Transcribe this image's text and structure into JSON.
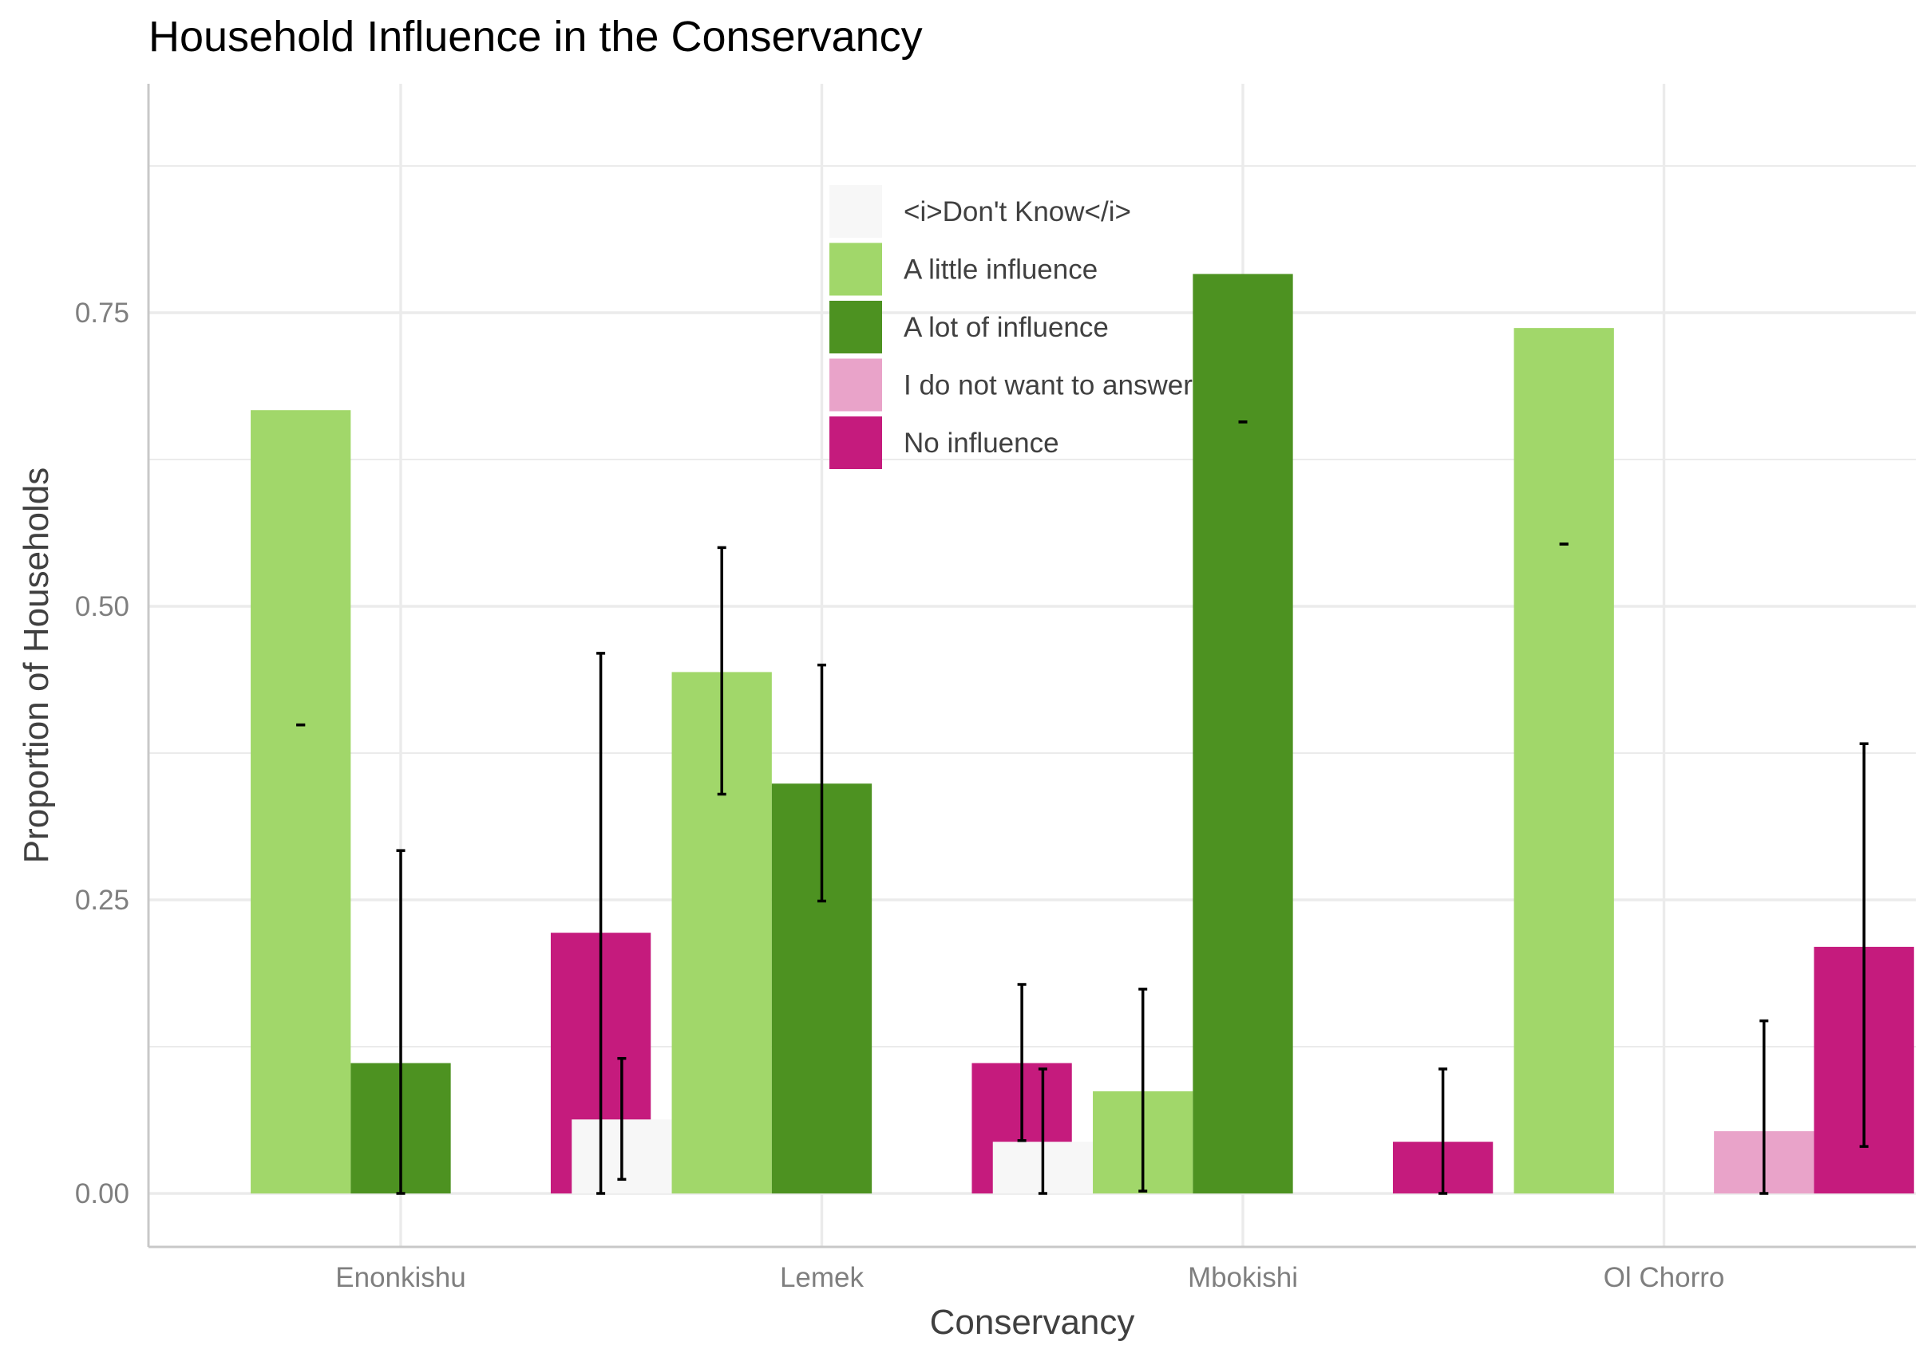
{
  "chart_data": {
    "type": "bar",
    "title": "Household Influence in the Conservancy",
    "xlabel": "Conservancy",
    "ylabel": "Proportion of Households",
    "categories": [
      "Enonkishu",
      "Lemek",
      "Mbokishi",
      "Ol Chorro"
    ],
    "ylim": [
      -0.14,
      0.95
    ],
    "yticks": [
      0.0,
      0.25,
      0.5,
      0.75
    ],
    "ytick_labels": [
      "0.00",
      "0.25",
      "0.50",
      "0.75"
    ],
    "grid": true,
    "legend_position": "top-center (inside)",
    "series": [
      {
        "name": "<i>Don't Know</i>",
        "color": "#f7f7f7",
        "values": [
          null,
          0.063,
          0.044,
          null
        ],
        "errors": [
          null,
          [
            0.012,
            0.115
          ],
          [
            0.0,
            0.106
          ],
          null
        ]
      },
      {
        "name": "A little influence",
        "color": "#a1d76a",
        "values": [
          0.667,
          0.444,
          0.087,
          0.737
        ],
        "errors": [
          [
            0.399,
            0.399
          ],
          [
            0.34,
            0.55
          ],
          [
            0.002,
            0.174
          ],
          [
            0.553,
            0.553
          ]
        ]
      },
      {
        "name": "A lot of influence",
        "color": "#4d9221",
        "values": [
          0.111,
          0.349,
          0.783,
          null
        ],
        "errors": [
          [
            0.0,
            0.292
          ],
          [
            0.249,
            0.45
          ],
          [
            0.657,
            0.657
          ],
          null
        ]
      },
      {
        "name": "I do not want to answer",
        "color": "#e9a3c9",
        "values": [
          null,
          null,
          null,
          0.053
        ],
        "errors": [
          null,
          null,
          null,
          [
            0.0,
            0.147
          ]
        ]
      },
      {
        "name": "No influence",
        "color": "#c51b7d",
        "values": [
          0.222,
          0.111,
          0.044,
          0.21
        ],
        "errors": [
          [
            0.0,
            0.46
          ],
          [
            0.045,
            0.178
          ],
          [
            0.0,
            0.106
          ],
          [
            0.04,
            0.383
          ]
        ]
      }
    ]
  }
}
